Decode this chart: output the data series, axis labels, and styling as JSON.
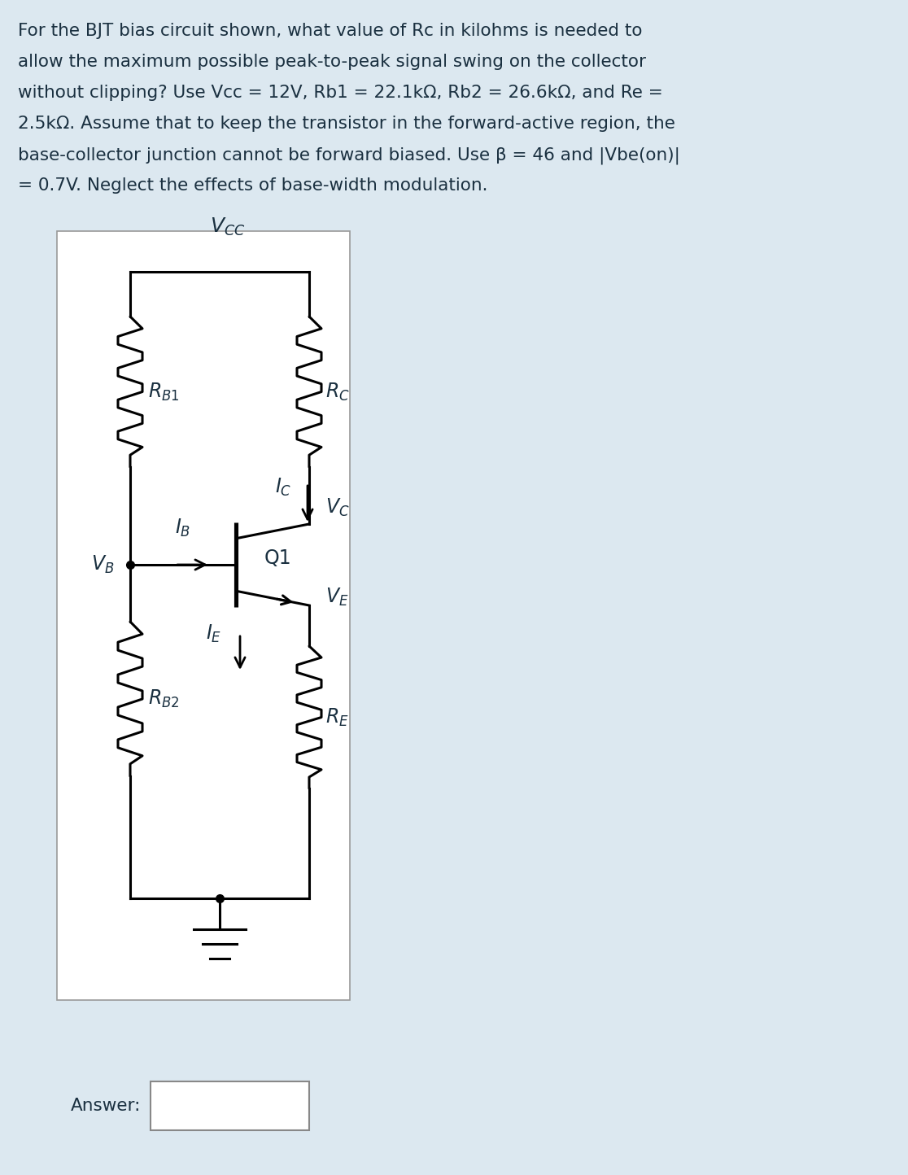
{
  "bg_color": "#dce8f0",
  "circuit_bg": "#ffffff",
  "text_color": "#1a3040",
  "question_lines": [
    "For the BJT bias circuit shown, what value of Rc in kilohms is needed to",
    "allow the maximum possible peak-to-peak signal swing on the collector",
    "without clipping? Use Vcc = 12V, Rb1 = 22.1kΩ, Rb2 = 26.6kΩ, and Re =",
    "2.5kΩ. Assume that to keep the transistor in the forward-active region, the",
    "base-collector junction cannot be forward biased. Use β = 46 and |Vbe(on)|",
    "= 0.7V. Neglect the effects of base-width modulation."
  ],
  "answer_label": "Answer:",
  "vcc_label": "V",
  "vcc_sub": "CC",
  "rb1_label": "R",
  "rb1_sub": "B1",
  "rb2_label": "R",
  "rb2_sub": "B2",
  "rc_label": "R",
  "rc_sub": "C",
  "re_label": "R",
  "re_sub": "E",
  "ic_label": "I",
  "ic_sub": "C",
  "ie_label": "I",
  "ie_sub": "E",
  "ib_label": "I",
  "ib_sub": "B",
  "vb_label": "V",
  "vb_sub": "B",
  "vc_label": "V",
  "vc_sub": "C",
  "ve_label": "V",
  "ve_sub": "E",
  "q1_label": "Q1"
}
